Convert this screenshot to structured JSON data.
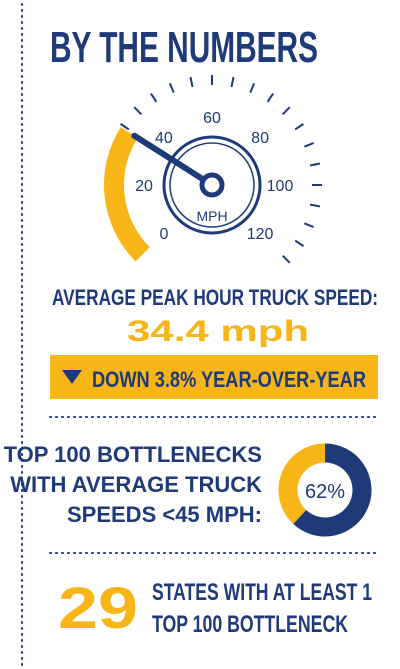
{
  "header": {
    "title": "BY THE NUMBERS"
  },
  "gauge": {
    "type": "gauge",
    "unit": "MPH",
    "range": [
      0,
      120
    ],
    "ticks": [
      0,
      20,
      40,
      60,
      80,
      100,
      120
    ],
    "value": 34.4,
    "value_label": "34.4 mph",
    "color": "#f7b518",
    "needle_color": "#1e3a78"
  },
  "speed": {
    "label": "AVERAGE PEAK HOUR TRUCK SPEED:",
    "change": "DOWN 3.8% YEAR-OVER-YEAR"
  },
  "bottlenecks": {
    "lines": [
      "TOP 100 BOTTLENECKS",
      "WITH AVERAGE TRUCK",
      "SPEEDS <45 MPH:"
    ],
    "value": 62,
    "value_label": "62%",
    "colors": [
      "#1e3a78",
      "#f7b518"
    ]
  },
  "states": {
    "count": 29,
    "lines": [
      "STATES WITH AT LEAST 1",
      "TOP 100 BOTTLENECK"
    ]
  }
}
